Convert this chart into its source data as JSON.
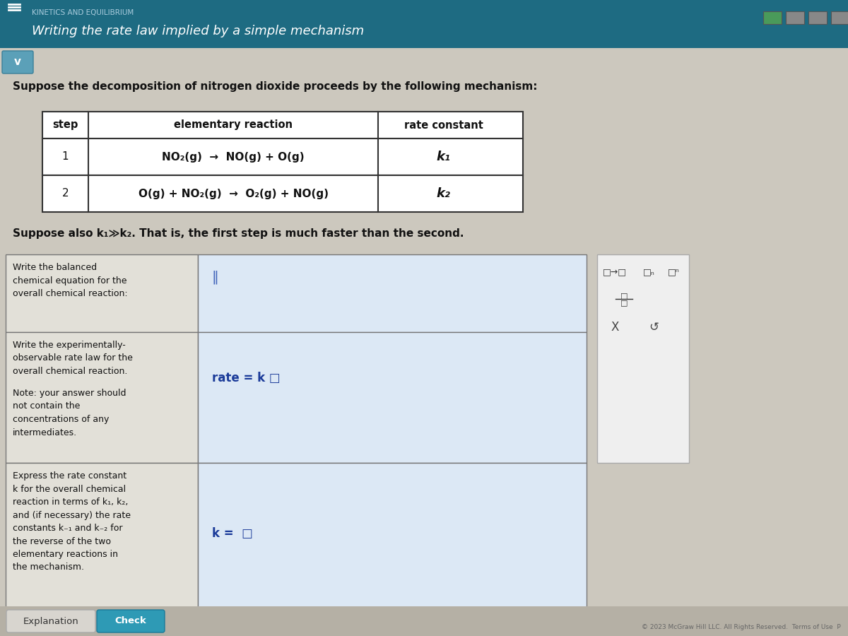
{
  "title": "Writing the rate law implied by a simple mechanism",
  "subtitle": "KINETICS AND EQUILIBRIUM",
  "header_bg": "#1e6b82",
  "header_text_color": "#ffffff",
  "body_bg": "#ccc8be",
  "page_bg": "#c0bcb2",
  "intro_text": "Suppose the decomposition of nitrogen dioxide proceeds by the following mechanism:",
  "table_headers": [
    "step",
    "elementary reaction",
    "rate constant"
  ],
  "table_row1_step": "1",
  "table_row1_reaction": "NO₂(g)  →  NO(g) + O(g)",
  "table_row1_rate": "k₁",
  "table_row2_step": "2",
  "table_row2_reaction": "O(g) + NO₂(g)  →  O₂(g) + NO(g)",
  "table_row2_rate": "k₂",
  "suppose_text": "Suppose also k₁≫k₂. That is, the first step is much faster than the second.",
  "q1_label": "Write the balanced\nchemical equation for the\noverall chemical reaction:",
  "q2_label_a": "Write the experimentally-\nobservable rate law for the\noverall chemical reaction.",
  "q2_label_b": "Note: your answer should\nnot contain the\nconcentrations of any\nintermediates.",
  "q2_answer": "rate = k □",
  "q3_label": "Express the rate constant\nk for the overall chemical\nreaction in terms of k₁, k₂,\nand (if necessary) the rate\nconstants k₋₁ and k₋₂ for\nthe reverse of the two\nelementary reactions in\nthe mechanism.",
  "q3_answer": "k =  □",
  "btn_explanation": "Explanation",
  "btn_check": "Check",
  "footer_text": "© 2023 McGraw Hill LLC. All Rights Reserved.  Terms of Use  P",
  "table_bg": "#ffffff",
  "table_border": "#333333",
  "input_bg_top": "#dce8f0",
  "input_bg_bottom": "#d8e4ee",
  "answer_color": "#1a3a99",
  "cursor_color": "#4466bb",
  "rt_panel_bg": "#f2f2f2",
  "rt_panel_border": "#aaaaaa",
  "chevron_bg": "#5ba0b8",
  "toolbar_btn1": "#4a9a5a",
  "toolbar_btn_other": "#888888"
}
